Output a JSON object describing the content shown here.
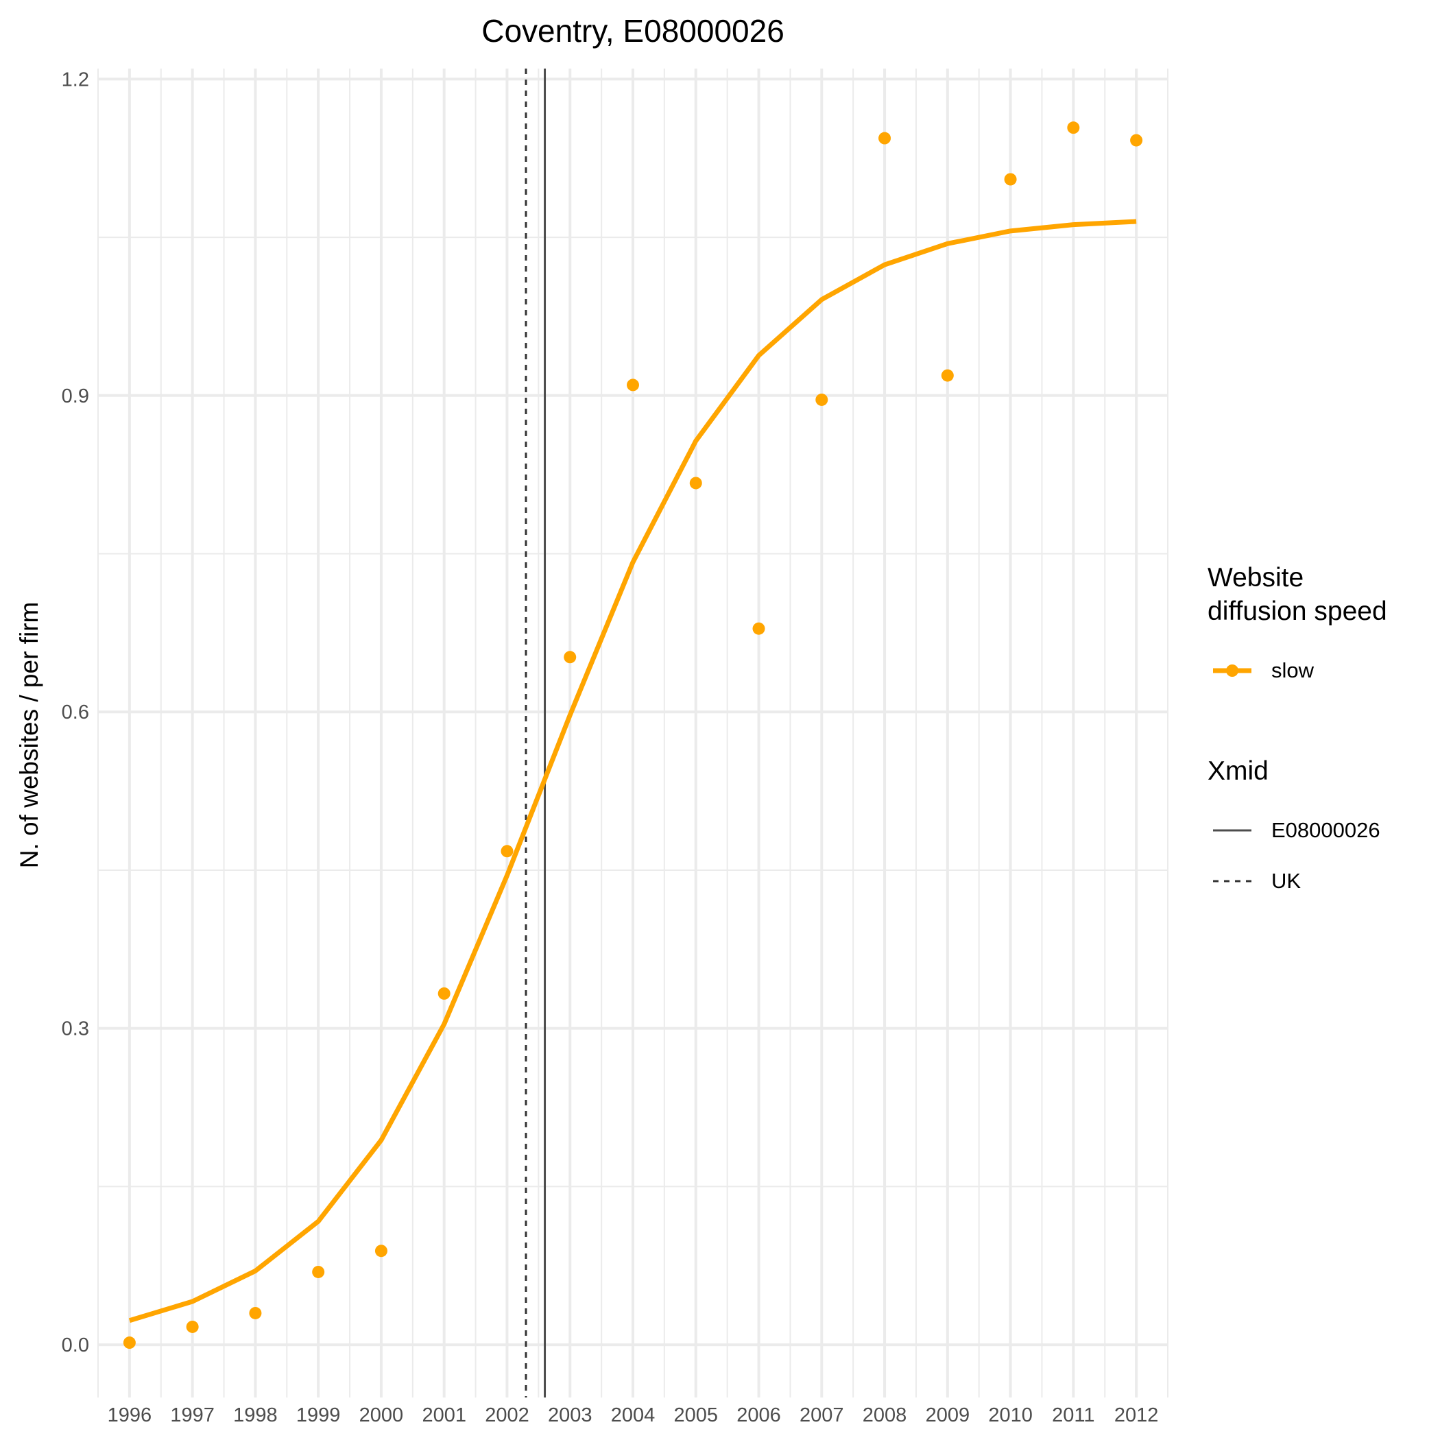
{
  "chart_data": {
    "type": "line",
    "title": "Coventry, E08000026",
    "xlabel": "",
    "ylabel": "N. of websites / per firm",
    "x": [
      1996,
      1997,
      1998,
      1999,
      2000,
      2001,
      2002,
      2003,
      2004,
      2005,
      2006,
      2007,
      2008,
      2009,
      2010,
      2011,
      2012
    ],
    "xlim": [
      1995.5,
      2012.5
    ],
    "ylim": [
      -0.05,
      1.21
    ],
    "y_ticks": [
      0.0,
      0.3,
      0.6,
      0.9,
      1.2
    ],
    "y_tick_labels": [
      "0.0",
      "0.3",
      "0.6",
      "0.9",
      "1.2"
    ],
    "grid": true,
    "series": [
      {
        "name": "slow",
        "color": "#FFA500",
        "points": [
          0.002,
          0.017,
          0.03,
          0.069,
          0.089,
          0.333,
          0.468,
          0.652,
          0.91,
          0.817,
          0.679,
          0.896,
          1.144,
          0.919,
          1.105,
          1.154,
          1.142
        ],
        "fitted": [
          0.023,
          0.041,
          0.07,
          0.117,
          0.194,
          0.304,
          0.445,
          0.597,
          0.742,
          0.857,
          0.938,
          0.991,
          1.024,
          1.044,
          1.056,
          1.062,
          1.065
        ]
      }
    ],
    "vlines": [
      {
        "name": "E08000026",
        "x": 2002.6,
        "style": "solid",
        "color": "#4d4d4d"
      },
      {
        "name": "UK",
        "x": 2002.3,
        "style": "dashed",
        "color": "#333333"
      }
    ],
    "legend": {
      "placement": "right",
      "groups": [
        {
          "title_lines": [
            "Website",
            "diffusion speed"
          ],
          "entries": [
            {
              "label": "slow",
              "kind": "line-point"
            }
          ]
        },
        {
          "title_lines": [
            "Xmid"
          ],
          "entries": [
            {
              "label": "E08000026",
              "kind": "solid"
            },
            {
              "label": "UK",
              "kind": "dashed"
            }
          ]
        }
      ]
    }
  }
}
